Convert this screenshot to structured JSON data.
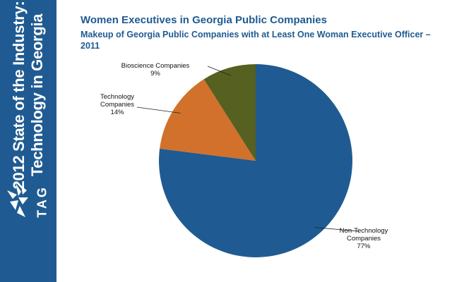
{
  "sidebar": {
    "title_line1": "2012 State of the Industry:",
    "title_line2": "Technology in Georgia",
    "logo_text": "TAG",
    "color": "#1f5b92"
  },
  "chart_data": {
    "type": "pie",
    "title": "Women Executives in Georgia Public Companies",
    "subtitle": "Makeup of Georgia Public Companies with at Least One Woman Executive Officer – 2011",
    "slices": [
      {
        "name": "Non-Technology Companies",
        "label_lines": [
          "Non-Technology",
          "Companies"
        ],
        "value": 77,
        "value_label": "77%",
        "color": "#1f5b92"
      },
      {
        "name": "Technology Companies",
        "label_lines": [
          "Technology",
          "Companies"
        ],
        "value": 14,
        "value_label": "14%",
        "color": "#d2712b"
      },
      {
        "name": "Bioscience Companies",
        "label_lines": [
          "Bioscience Companies"
        ],
        "value": 9,
        "value_label": "9%",
        "color": "#566020"
      }
    ],
    "start": "top",
    "direction": "clockwise",
    "legend": "none"
  }
}
